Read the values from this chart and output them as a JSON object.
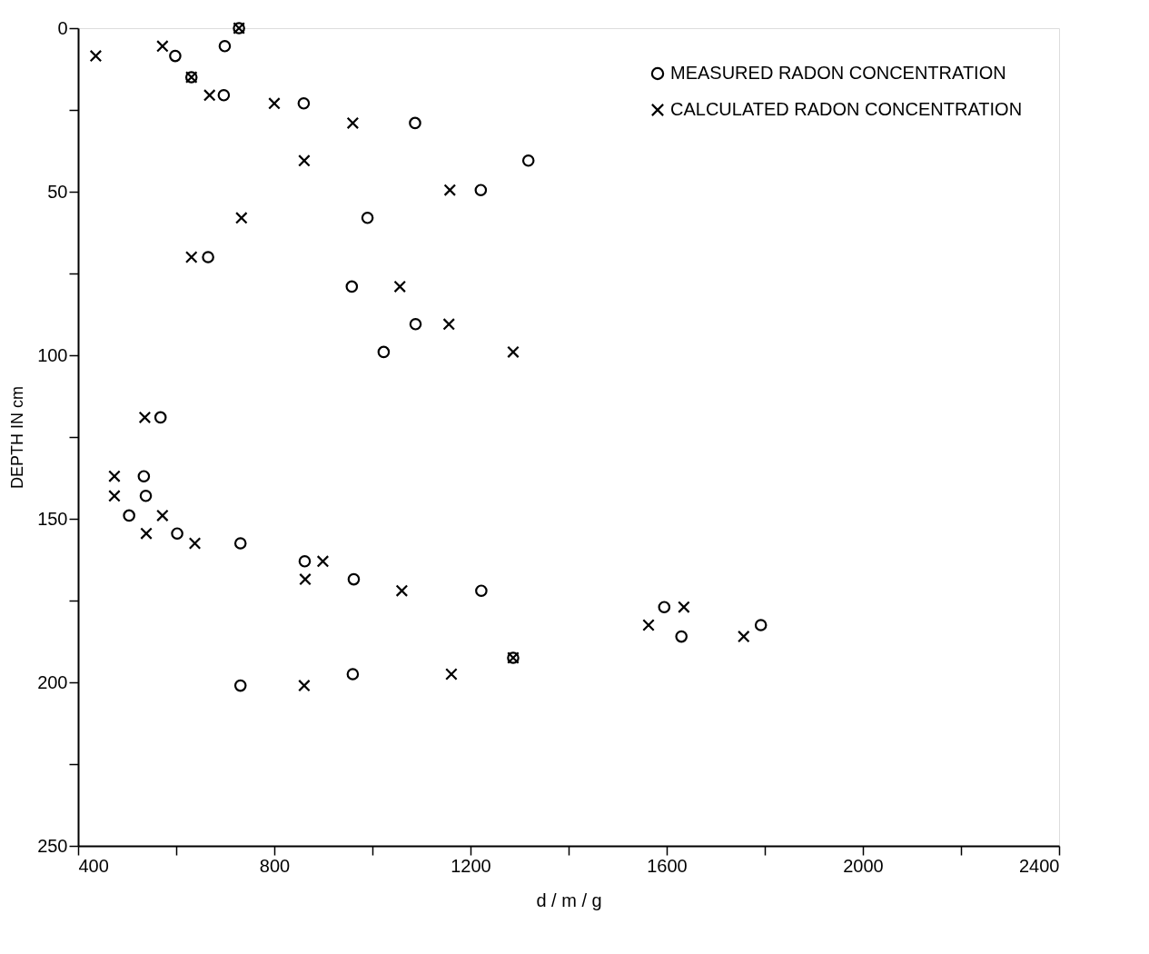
{
  "chart_data": {
    "type": "scatter",
    "xlabel": "d / m / g",
    "ylabel": "DEPTH IN cm",
    "xlim": [
      400,
      2400
    ],
    "ylim": [
      250,
      0
    ],
    "xticks": [
      400,
      {
        "value": 600,
        "label": null
      },
      800,
      {
        "value": 1000,
        "label": null
      },
      1200,
      {
        "value": 1400,
        "label": null
      },
      1600,
      {
        "value": 1800,
        "label": null
      },
      2000,
      {
        "value": 2200,
        "label": null
      },
      2400
    ],
    "yticks": [
      0,
      {
        "value": 25,
        "label": null
      },
      50,
      {
        "value": 75,
        "label": null
      },
      100,
      {
        "value": 125,
        "label": null
      },
      150,
      {
        "value": 175,
        "label": null
      },
      200,
      {
        "value": 225,
        "label": null
      },
      250
    ],
    "grid": false,
    "legend": "top right",
    "series": [
      {
        "name": "MEASURED RADON CONCENTRATION",
        "color": "#000000",
        "marker": "circle",
        "x": [
          598,
          699,
          728,
          631,
          697,
          860,
          1087,
          1318,
          1221,
          990,
          665,
          958,
          1088,
          1023,
          568,
          534,
          538,
          504,
          602,
          731,
          862,
          962,
          1222,
          1287,
          960,
          731,
          1595,
          1630,
          1792
        ],
        "values": [
          8.5,
          5.5,
          0,
          15,
          20.5,
          23,
          29,
          40.5,
          49.5,
          58,
          70,
          79,
          90.5,
          99,
          119,
          137,
          143,
          149,
          154.5,
          157.5,
          163,
          168.5,
          172,
          192.5,
          197.5,
          201,
          177,
          186,
          182.5
        ]
      },
      {
        "name": "CALCULATED RADON CONCENTRATION",
        "color": "#000000",
        "marker": "cross",
        "x": [
          436,
          572,
          728,
          631,
          668,
          800,
          960,
          861,
          1158,
          733,
          631,
          1056,
          1156,
          1287,
          536,
          474,
          474,
          572,
          539,
          638,
          899,
          863,
          1060,
          1287,
          1161,
          861,
          1635,
          1563,
          1757
        ],
        "values": [
          8.5,
          5.5,
          0,
          15,
          20.5,
          23,
          29,
          40.5,
          49.5,
          58,
          70,
          79,
          90.5,
          99,
          119,
          137,
          143,
          149,
          154.5,
          157.5,
          163,
          168.5,
          172,
          192.5,
          197.5,
          201,
          177,
          182.5,
          186
        ]
      }
    ]
  }
}
